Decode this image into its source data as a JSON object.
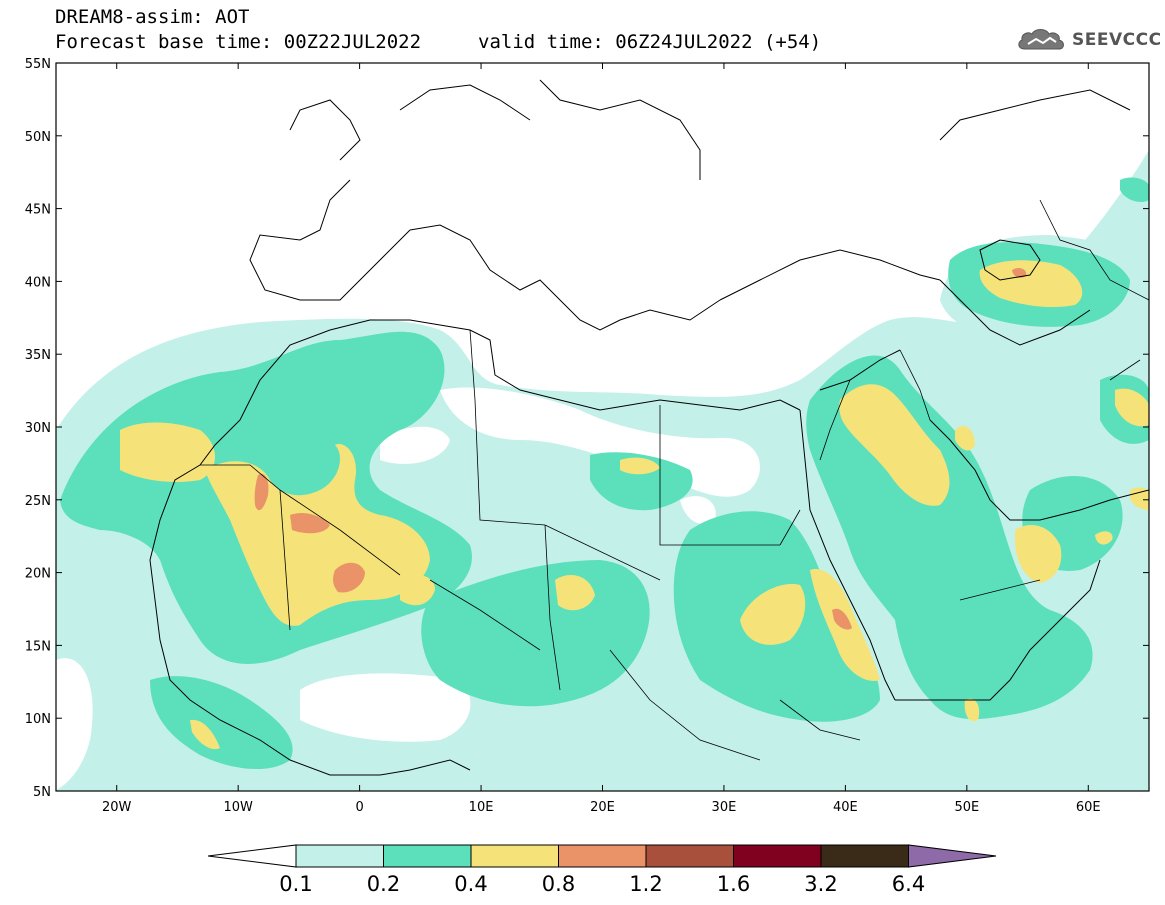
{
  "header": {
    "model_title": "DREAM8-assim: AOT",
    "base_time": "Forecast base time: 00Z22JUL2022",
    "valid_time": "valid time: 06Z24JUL2022 (+54)"
  },
  "logo": {
    "text": "SEEVCCC",
    "icon": "cloud-icon"
  },
  "axes": {
    "lon_range": [
      -25,
      65
    ],
    "lat_range": [
      5,
      55
    ],
    "lat_ticks": [
      "5N",
      "10N",
      "15N",
      "20N",
      "25N",
      "30N",
      "35N",
      "40N",
      "45N",
      "50N",
      "55N"
    ],
    "lon_ticks": [
      "20W",
      "10W",
      "0",
      "10E",
      "20E",
      "30E",
      "40E",
      "50E",
      "60E"
    ]
  },
  "colorbar": {
    "levels": [
      "0.1",
      "0.2",
      "0.4",
      "0.8",
      "1.2",
      "1.6",
      "3.2",
      "6.4"
    ],
    "colors": [
      "#c4f0ea",
      "#5ce0bc",
      "#f5e37a",
      "#ea9368",
      "#a8503c",
      "#800020",
      "#3a2a18"
    ],
    "under_color": "#ffffff",
    "over_color": "#8e6aa8"
  },
  "colors": {
    "aot_01_02": "#c4f0ea",
    "aot_02_04": "#5ce0bc",
    "aot_04_08": "#f5e37a",
    "aot_08_12": "#ea9368",
    "coastline": "#000000"
  }
}
